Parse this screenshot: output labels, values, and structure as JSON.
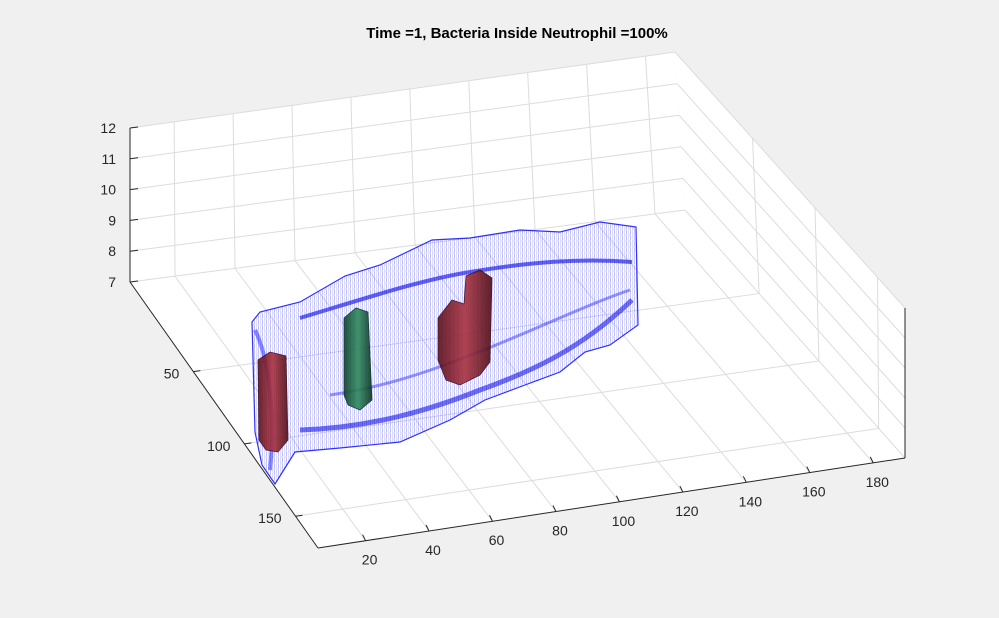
{
  "chart_data": {
    "type": "3d-surface",
    "title": "Time =1, Bacteria Inside Neutrophil  =100%",
    "xlabel": "",
    "ylabel": "",
    "zlabel": "",
    "grid": true,
    "x_ticks": [
      "20",
      "40",
      "60",
      "80",
      "100",
      "120",
      "140",
      "160",
      "180"
    ],
    "y_ticks": [
      "50",
      "100",
      "150"
    ],
    "z_ticks": [
      "7",
      "8",
      "9",
      "10",
      "11",
      "12"
    ],
    "zlim": [
      7,
      12
    ],
    "colors": {
      "neutrophil_mesh": "#1a1aff",
      "bacteria_red": "#8b1a2a",
      "bacteria_green": "#1f6b4a",
      "axes_background": "#ffffff",
      "figure_background": "#f0f0f0",
      "grid": "#dcdcdc"
    }
  }
}
